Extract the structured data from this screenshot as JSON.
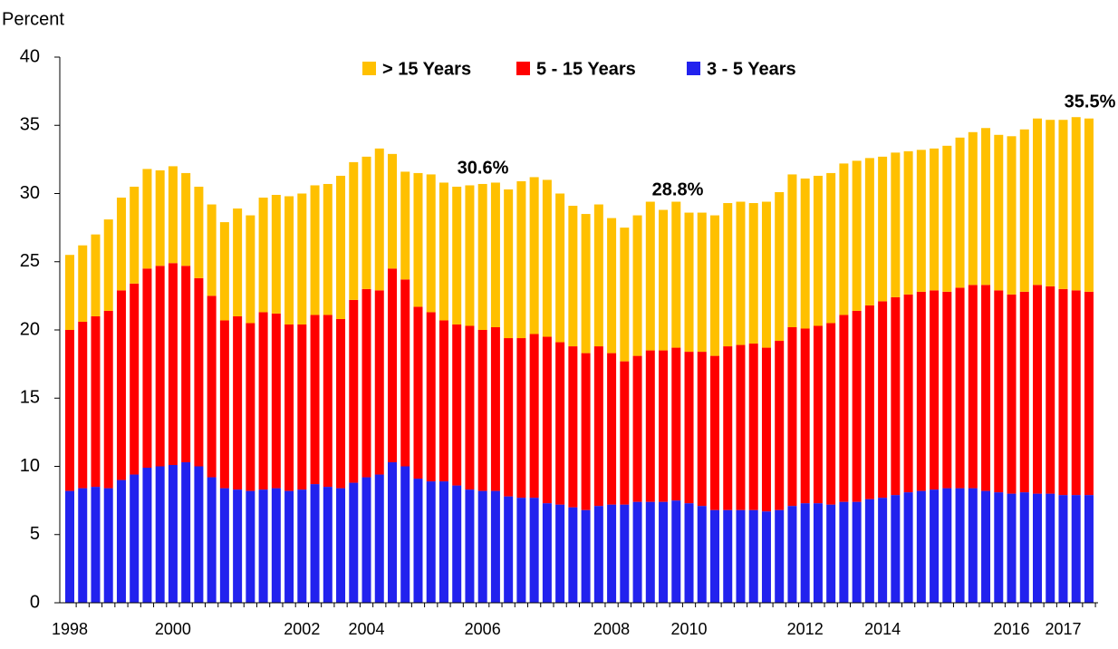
{
  "chart_data": {
    "type": "stacked_bar",
    "y_label": "Percent",
    "categories": [
      "1998",
      null,
      null,
      null,
      null,
      null,
      null,
      null,
      "2000",
      null,
      null,
      null,
      null,
      null,
      null,
      null,
      null,
      null,
      "2002",
      null,
      null,
      null,
      null,
      "2004",
      null,
      null,
      null,
      null,
      null,
      null,
      null,
      null,
      "2006",
      null,
      null,
      null,
      null,
      null,
      null,
      null,
      null,
      null,
      "2008",
      null,
      null,
      null,
      null,
      null,
      "2010",
      null,
      null,
      null,
      null,
      null,
      null,
      null,
      null,
      "2012",
      null,
      null,
      null,
      null,
      null,
      "2014",
      null,
      null,
      null,
      null,
      null,
      null,
      null,
      null,
      null,
      "2016",
      null,
      null,
      null,
      "2017",
      null,
      null
    ],
    "series": [
      {
        "name": "3 - 5 Years",
        "color": "#2222ee",
        "values": [
          8.2,
          8.4,
          8.5,
          8.4,
          9.0,
          9.4,
          9.9,
          10.0,
          10.1,
          10.3,
          10.0,
          9.2,
          8.4,
          8.3,
          8.2,
          8.3,
          8.4,
          8.2,
          8.3,
          8.7,
          8.5,
          8.4,
          8.8,
          9.2,
          9.4,
          10.3,
          10.0,
          9.1,
          8.9,
          8.9,
          8.6,
          8.3,
          8.2,
          8.2,
          7.8,
          7.7,
          7.7,
          7.3,
          7.2,
          7.0,
          6.8,
          7.1,
          7.2,
          7.2,
          7.4,
          7.4,
          7.4,
          7.5,
          7.3,
          7.1,
          6.8,
          6.8,
          6.8,
          6.8,
          6.7,
          6.8,
          7.1,
          7.3,
          7.3,
          7.2,
          7.4,
          7.4,
          7.6,
          7.7,
          7.9,
          8.1,
          8.2,
          8.3,
          8.4,
          8.4,
          8.4,
          8.2,
          8.1,
          8.0,
          8.1,
          8.0,
          8.0,
          7.9,
          7.9,
          7.9
        ]
      },
      {
        "name": "5 - 15 Years",
        "color": "#ff0000",
        "values": [
          11.8,
          12.2,
          12.5,
          13.0,
          13.9,
          14.0,
          14.6,
          14.7,
          14.8,
          14.4,
          13.8,
          13.3,
          12.3,
          12.7,
          12.3,
          13.0,
          12.8,
          12.2,
          12.1,
          12.4,
          12.6,
          12.4,
          13.4,
          13.8,
          13.5,
          14.2,
          13.7,
          12.6,
          12.4,
          11.8,
          11.8,
          12.0,
          11.8,
          12.0,
          11.6,
          11.7,
          12.0,
          12.2,
          11.9,
          11.8,
          11.5,
          11.7,
          11.1,
          10.5,
          10.7,
          11.1,
          11.1,
          11.2,
          11.1,
          11.3,
          11.3,
          12.0,
          12.1,
          12.2,
          12.0,
          12.4,
          13.1,
          12.8,
          13.0,
          13.3,
          13.7,
          14.0,
          14.2,
          14.4,
          14.5,
          14.5,
          14.6,
          14.6,
          14.4,
          14.7,
          14.9,
          15.1,
          14.8,
          14.6,
          14.7,
          15.3,
          15.2,
          15.1,
          15.0,
          14.9
        ]
      },
      {
        "name": "> 15 Years",
        "color": "#ffc000",
        "values": [
          5.5,
          5.6,
          6.0,
          6.7,
          6.8,
          7.1,
          7.3,
          7.0,
          7.1,
          6.8,
          6.7,
          6.7,
          7.2,
          7.9,
          7.9,
          8.4,
          8.7,
          9.4,
          9.6,
          9.5,
          9.6,
          10.5,
          10.1,
          9.7,
          10.4,
          8.4,
          7.9,
          9.8,
          10.1,
          10.1,
          10.1,
          10.3,
          10.7,
          10.6,
          10.9,
          11.5,
          11.5,
          11.5,
          10.9,
          10.3,
          10.2,
          10.4,
          9.9,
          9.8,
          10.3,
          10.9,
          10.3,
          10.7,
          10.2,
          10.2,
          10.3,
          10.5,
          10.5,
          10.3,
          10.7,
          10.9,
          11.2,
          11.0,
          11.0,
          11.0,
          11.1,
          11.0,
          10.8,
          10.6,
          10.6,
          10.5,
          10.4,
          10.4,
          10.7,
          11.0,
          11.2,
          11.5,
          11.4,
          11.6,
          11.9,
          12.2,
          12.2,
          12.4,
          12.7,
          12.7
        ]
      }
    ],
    "annotations": [
      "30.6%",
      "28.8%",
      "35.5%"
    ],
    "ylim": [
      0,
      40
    ],
    "yticks": [
      0,
      5,
      10,
      15,
      20,
      25,
      30,
      35,
      40
    ],
    "grid": false
  }
}
